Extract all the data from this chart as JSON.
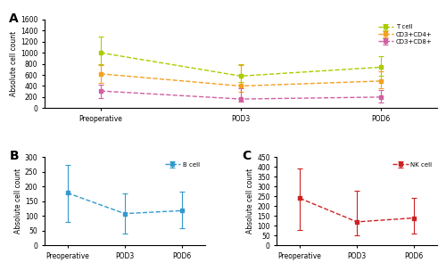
{
  "xticklabels": [
    "Preoperative",
    "POD3",
    "POD6"
  ],
  "panel_A": {
    "label": "A",
    "series": [
      {
        "name": "T cell",
        "color": "#aacc00",
        "values": [
          1000,
          580,
          740
        ],
        "yerr_low": [
          200,
          100,
          150
        ],
        "yerr_high": [
          300,
          220,
          200
        ]
      },
      {
        "name": "CD3+CD4+",
        "color": "#f4a020",
        "values": [
          620,
          400,
          490
        ],
        "yerr_low": [
          170,
          100,
          130
        ],
        "yerr_high": [
          160,
          380,
          180
        ]
      },
      {
        "name": "CD3+CD8+",
        "color": "#d060a0",
        "values": [
          310,
          165,
          200
        ],
        "yerr_low": [
          130,
          50,
          100
        ],
        "yerr_high": [
          120,
          200,
          120
        ]
      }
    ],
    "ylabel": "Absolute cell count",
    "ylim": [
      0,
      1600
    ],
    "yticks": [
      0,
      200,
      400,
      600,
      800,
      1000,
      1200,
      1400,
      1600
    ]
  },
  "panel_B": {
    "label": "B",
    "series": [
      {
        "name": "B cell",
        "color": "#3399cc",
        "values": [
          178,
          108,
          118
        ],
        "yerr_low": [
          98,
          68,
          58
        ],
        "yerr_high": [
          95,
          68,
          65
        ]
      }
    ],
    "ylabel": "Absolute cell count",
    "ylim": [
      0,
      300
    ],
    "yticks": [
      0,
      50,
      100,
      150,
      200,
      250,
      300
    ]
  },
  "panel_C": {
    "label": "C",
    "series": [
      {
        "name": "NK cell",
        "color": "#cc2222",
        "values": [
          240,
          120,
          140
        ],
        "yerr_low": [
          160,
          70,
          80
        ],
        "yerr_high": [
          150,
          160,
          100
        ]
      }
    ],
    "ylabel": "Absolute cell count",
    "ylim": [
      0,
      450
    ],
    "yticks": [
      0,
      50,
      100,
      150,
      200,
      250,
      300,
      350,
      400,
      450
    ]
  }
}
